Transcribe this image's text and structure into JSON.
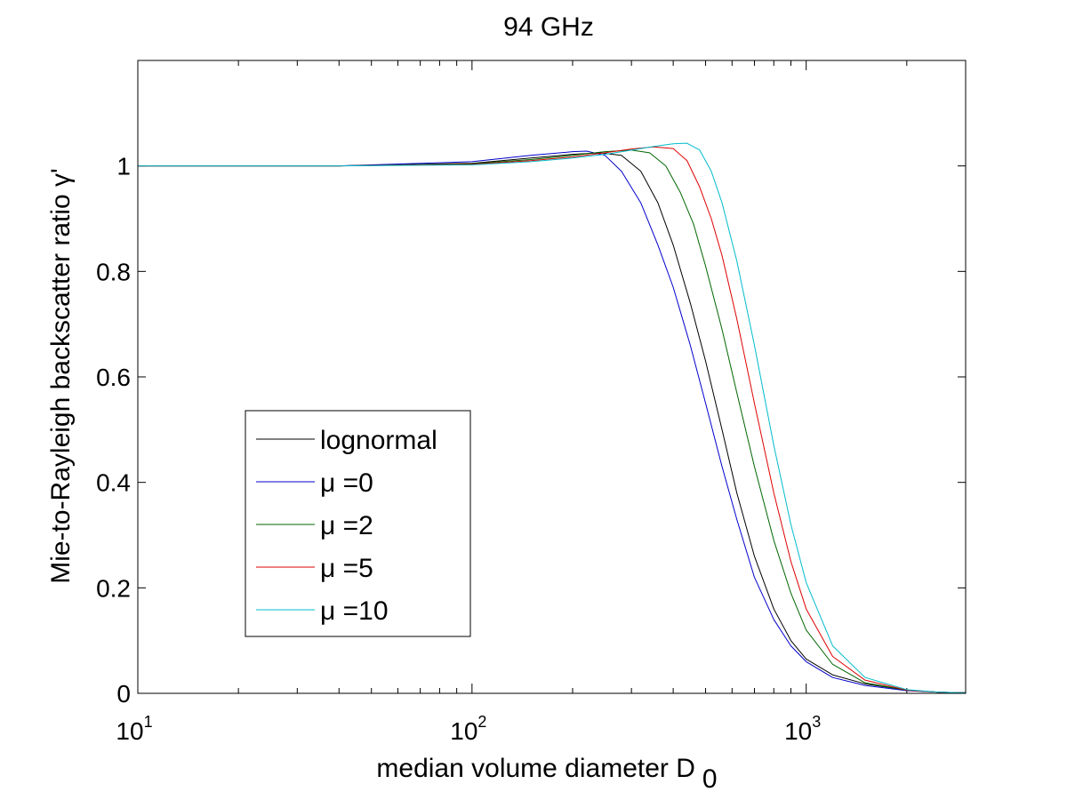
{
  "chart_data": {
    "type": "line",
    "title": "94 GHz",
    "xlabel": "median volume diameter D",
    "xlabel_subscript": "0",
    "ylabel": "Mie-to-Rayleigh backscatter ratio γ'",
    "x_scale": "log",
    "xlim": [
      10,
      3000
    ],
    "ylim": [
      0,
      1.2
    ],
    "x_ticks": [
      {
        "value": 10,
        "base": "10",
        "exp": "1"
      },
      {
        "value": 100,
        "base": "10",
        "exp": "2"
      },
      {
        "value": 1000,
        "base": "10",
        "exp": "3"
      }
    ],
    "y_ticks": [
      {
        "value": 0,
        "label": "0"
      },
      {
        "value": 0.2,
        "label": "0.2"
      },
      {
        "value": 0.4,
        "label": "0.4"
      },
      {
        "value": 0.6,
        "label": "0.6"
      },
      {
        "value": 0.8,
        "label": "0.8"
      },
      {
        "value": 1,
        "label": "1"
      }
    ],
    "grid": false,
    "legend_position": "bottom-left",
    "series": [
      {
        "name": "lognormal",
        "color": "#000000",
        "x": [
          10,
          40,
          100,
          150,
          200,
          240,
          280,
          320,
          360,
          400,
          450,
          500,
          560,
          620,
          700,
          800,
          900,
          1000,
          1200,
          1500,
          2000,
          2500,
          3000
        ],
        "y": [
          1.0,
          1.0,
          1.005,
          1.015,
          1.022,
          1.025,
          1.02,
          0.99,
          0.93,
          0.85,
          0.74,
          0.63,
          0.5,
          0.38,
          0.26,
          0.16,
          0.1,
          0.065,
          0.035,
          0.018,
          0.006,
          0.002,
          0.001
        ]
      },
      {
        "name": "μ =0",
        "color": "#0000cc",
        "x": [
          10,
          40,
          100,
          150,
          200,
          220,
          250,
          280,
          320,
          360,
          400,
          450,
          500,
          560,
          620,
          700,
          800,
          900,
          1000,
          1200,
          1500,
          2000,
          2500,
          3000
        ],
        "y": [
          1.0,
          1.0,
          1.008,
          1.02,
          1.027,
          1.028,
          1.02,
          0.99,
          0.93,
          0.85,
          0.77,
          0.66,
          0.55,
          0.43,
          0.33,
          0.22,
          0.14,
          0.09,
          0.06,
          0.03,
          0.015,
          0.005,
          0.002,
          0.001
        ]
      },
      {
        "name": "μ =2",
        "color": "#006600",
        "x": [
          10,
          40,
          100,
          150,
          200,
          250,
          300,
          340,
          380,
          420,
          460,
          500,
          560,
          620,
          700,
          800,
          900,
          1000,
          1200,
          1500,
          2000,
          2500,
          3000
        ],
        "y": [
          1.0,
          1.0,
          1.004,
          1.012,
          1.02,
          1.027,
          1.03,
          1.025,
          1.0,
          0.95,
          0.89,
          0.81,
          0.69,
          0.57,
          0.43,
          0.29,
          0.19,
          0.12,
          0.055,
          0.02,
          0.006,
          0.002,
          0.001
        ]
      },
      {
        "name": "μ =5",
        "color": "#dd0000",
        "x": [
          10,
          40,
          100,
          150,
          200,
          250,
          300,
          350,
          400,
          440,
          480,
          520,
          560,
          620,
          700,
          800,
          900,
          1000,
          1200,
          1500,
          2000,
          2500,
          3000
        ],
        "y": [
          1.0,
          1.0,
          1.003,
          1.01,
          1.017,
          1.025,
          1.032,
          1.036,
          1.033,
          1.01,
          0.96,
          0.9,
          0.83,
          0.71,
          0.55,
          0.38,
          0.25,
          0.16,
          0.07,
          0.025,
          0.006,
          0.002,
          0.001
        ]
      },
      {
        "name": "μ =10",
        "color": "#00bbcc",
        "x": [
          10,
          40,
          100,
          150,
          200,
          250,
          300,
          350,
          400,
          440,
          480,
          520,
          560,
          620,
          700,
          800,
          900,
          1000,
          1200,
          1500,
          2000,
          2500,
          3000
        ],
        "y": [
          1.0,
          1.0,
          1.002,
          1.008,
          1.015,
          1.022,
          1.03,
          1.037,
          1.042,
          1.043,
          1.03,
          0.99,
          0.93,
          0.82,
          0.66,
          0.47,
          0.32,
          0.21,
          0.09,
          0.03,
          0.007,
          0.002,
          0.001
        ]
      }
    ]
  }
}
